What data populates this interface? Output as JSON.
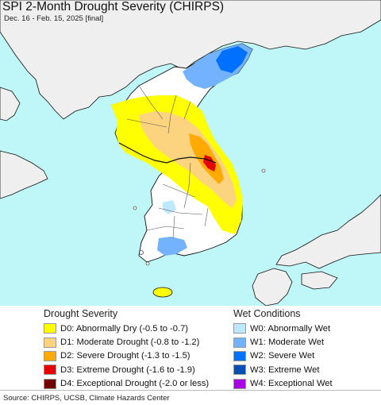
{
  "title": "SPI 2-Month Drought Severity (CHIRPS)",
  "subtitle": "Dec. 16 - Feb. 15, 2025 [final]",
  "colors": {
    "sea": "#bff7f8",
    "land": "#efeff0",
    "korea_base": "#ffffff",
    "coast": "#111111",
    "border": "#333333"
  },
  "drought_legend": {
    "title": "Drought Severity",
    "items": [
      {
        "label": "D0: Abnormally Dry (-0.5 to -0.7)",
        "color": "#ffff00"
      },
      {
        "label": "D1: Moderate Drought (-0.8 to -1.2)",
        "color": "#fcd37f"
      },
      {
        "label": "D2: Severe Drought (-1.3 to -1.5)",
        "color": "#ffaa00"
      },
      {
        "label": "D3: Extreme Drought (-1.6 to -1.9)",
        "color": "#e60000"
      },
      {
        "label": "D4: Exceptional Drought (-2.0 or less)",
        "color": "#730000"
      }
    ]
  },
  "wet_legend": {
    "title": "Wet Conditions",
    "items": [
      {
        "label": "W0: Abnormally Wet",
        "color": "#bee8ff"
      },
      {
        "label": "W1: Moderate Wet",
        "color": "#73b2ff"
      },
      {
        "label": "W2: Severe Wet",
        "color": "#0070ff"
      },
      {
        "label": "W3: Extreme Wet",
        "color": "#0050b4"
      },
      {
        "label": "W4: Exceptional Wet",
        "color": "#a900e6"
      }
    ]
  },
  "source": "Source: CHIRPS, UCSB, Climate Hazards Center"
}
